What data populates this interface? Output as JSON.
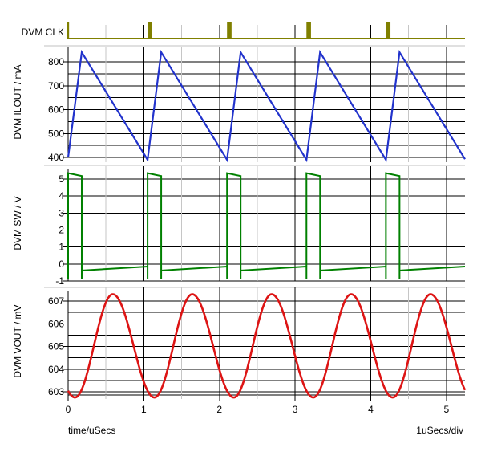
{
  "xaxis": {
    "label": "time/uSecs",
    "per_div_label": "1uSecs/div",
    "range_us": [
      0,
      5.245
    ],
    "major_ticks": [
      0,
      1,
      2,
      3,
      4,
      5
    ],
    "tick_labels": [
      "0",
      "1",
      "2",
      "3",
      "4",
      "5"
    ],
    "minor_step": 0.5
  },
  "colors": {
    "background": "#FFFFFF",
    "text": "#000000",
    "grid_major": "#000000",
    "grid_minor": "#C6C6C6",
    "panel_border": "#C0C0C0",
    "axis": "#000000"
  },
  "chart_data": [
    {
      "id": "clk",
      "type": "digital",
      "label": "DVM CLK",
      "color": "#808000",
      "period_us": 1.05,
      "pulse_width_us": 0.06,
      "first_pulse_width_us": 0.025,
      "pulse_times_us": [
        0,
        1.05,
        2.1,
        3.15,
        4.2
      ],
      "levels": {
        "low": 0,
        "high": 1
      }
    },
    {
      "id": "ilout",
      "type": "sawtooth",
      "label": "DVM ILOUT / mA",
      "unit": "mA",
      "color": "#2233CC",
      "period_us": 1.05,
      "rise_time_us": 0.18,
      "start_value": 400,
      "min": 390,
      "max": 840,
      "ylim": [
        400,
        800
      ],
      "grid_step": 50,
      "ytick_values": [
        800,
        700,
        600,
        500,
        400
      ],
      "ytick_labels": [
        "800",
        "700",
        "600",
        "500",
        "400"
      ]
    },
    {
      "id": "sw",
      "type": "pwm",
      "label": "DVM SW / V",
      "unit": "V",
      "color": "#008000",
      "period_us": 1.05,
      "on_time_us": 0.18,
      "high_start": 5.35,
      "high_end": 5.18,
      "low_start": -0.38,
      "low_end": -0.15,
      "undershoot": -0.9,
      "ylim": [
        -1,
        5
      ],
      "grid_step": 1,
      "ytick_values": [
        5,
        4,
        3,
        2,
        1,
        0,
        -1
      ],
      "ytick_labels": [
        "5",
        "4",
        "3",
        "2",
        "1",
        "0",
        "-1"
      ]
    },
    {
      "id": "vout",
      "type": "ripple",
      "label": "DVM VOUT / mV",
      "unit": "mV",
      "color": "#DD1414",
      "period_us": 1.05,
      "trough_offset_us": 0.09,
      "rise_half_us": 0.5,
      "fall_half_us": 0.55,
      "min": 602.75,
      "max": 607.3,
      "ylim": [
        603,
        607
      ],
      "grid_step": 0.5,
      "ytick_values": [
        607,
        606,
        605,
        604,
        603
      ],
      "ytick_labels": [
        "607",
        "606",
        "605",
        "604",
        "603"
      ]
    }
  ]
}
